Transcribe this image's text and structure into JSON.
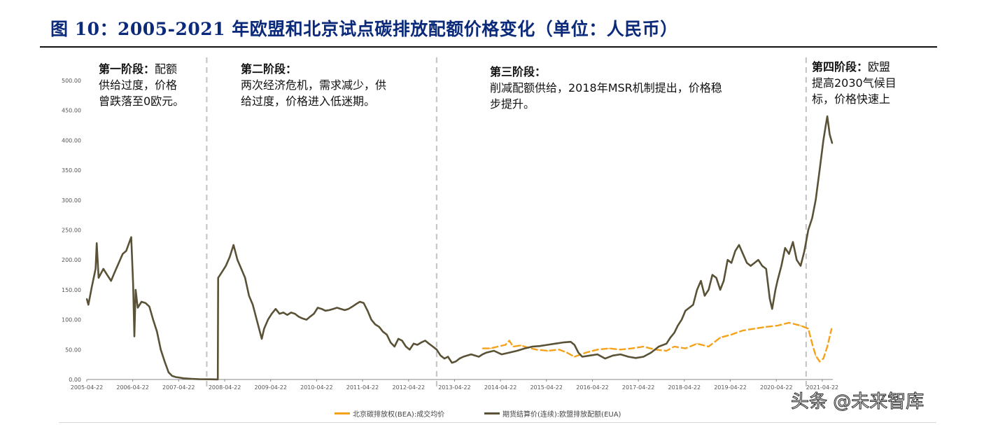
{
  "figure_title": "图 10：2005-2021 年欧盟和北京试点碳排放配额价格变化（单位：人民币）",
  "annotations": [
    {
      "head": "第一阶段：",
      "lines": [
        "配额",
        "供给过度，价格",
        "曾跌落至0欧元。"
      ]
    },
    {
      "head": "第二阶段：",
      "lines": [
        "",
        "两次经济危机，需求减少，供",
        "给过度，价格进入低迷期。"
      ]
    },
    {
      "head": "第三阶段：",
      "lines": [
        "",
        "削减配额供给，2018年MSR机制提出，价格稳",
        "步提升。"
      ]
    },
    {
      "head": "第四阶段：",
      "lines": [
        "欧盟",
        "提高2030气候目",
        "标，价格快速上"
      ]
    }
  ],
  "watermark": "头条 @未来智库",
  "colors": {
    "eua": "#5a5236",
    "bea": "#f5a21b",
    "divider": "#c8c8c8",
    "title": "#0b2a7a"
  },
  "chart_data": {
    "type": "line",
    "ylim": [
      0,
      500
    ],
    "yticks": [
      "0.00",
      "50.00",
      "100.00",
      "150.00",
      "200.00",
      "250.00",
      "300.00",
      "350.00",
      "400.00",
      "450.00",
      "500.00"
    ],
    "xticks": [
      "2005-04-22",
      "2006-04-22",
      "2007-04-22",
      "2008-04-22",
      "2009-04-22",
      "2010-04-22",
      "2011-04-22",
      "2012-04-22",
      "2013-04-22",
      "2014-04-22",
      "2015-04-22",
      "2016-04-22",
      "2017-04-22",
      "2018-04-22",
      "2019-04-22",
      "2020-04-22",
      "2021-04-22"
    ],
    "xlim": [
      "2005-04-22",
      "2021-07-15"
    ],
    "phase_dividers": [
      "2007-12-01",
      "2012-12-01",
      "2020-12-15"
    ],
    "series": [
      {
        "name": "期货结算价(连续):欧盟排放配额(EUA)",
        "points": [
          [
            "2005-04-22",
            135
          ],
          [
            "2005-05-05",
            125
          ],
          [
            "2005-06-01",
            155
          ],
          [
            "2005-07-01",
            185
          ],
          [
            "2005-07-10",
            228
          ],
          [
            "2005-07-25",
            170
          ],
          [
            "2005-09-01",
            185
          ],
          [
            "2005-10-01",
            175
          ],
          [
            "2005-11-01",
            165
          ],
          [
            "2005-12-01",
            180
          ],
          [
            "2006-01-01",
            195
          ],
          [
            "2006-02-01",
            210
          ],
          [
            "2006-03-01",
            215
          ],
          [
            "2006-04-10",
            238
          ],
          [
            "2006-04-25",
            160
          ],
          [
            "2006-05-05",
            72
          ],
          [
            "2006-05-15",
            150
          ],
          [
            "2006-06-01",
            120
          ],
          [
            "2006-07-01",
            130
          ],
          [
            "2006-08-01",
            128
          ],
          [
            "2006-09-01",
            122
          ],
          [
            "2006-10-01",
            100
          ],
          [
            "2006-11-01",
            80
          ],
          [
            "2006-12-01",
            50
          ],
          [
            "2007-01-01",
            30
          ],
          [
            "2007-02-01",
            12
          ],
          [
            "2007-03-01",
            6
          ],
          [
            "2007-04-01",
            4
          ],
          [
            "2007-05-01",
            3
          ],
          [
            "2007-06-01",
            2
          ],
          [
            "2007-08-01",
            1
          ],
          [
            "2007-10-01",
            0.5
          ],
          [
            "2007-12-31",
            0.3
          ],
          [
            "2008-02-01",
            0.2
          ],
          [
            "2008-02-27",
            0.1
          ],
          [
            "2008-03-01",
            170
          ],
          [
            "2008-04-01",
            180
          ],
          [
            "2008-05-01",
            190
          ],
          [
            "2008-06-01",
            205
          ],
          [
            "2008-07-01",
            225
          ],
          [
            "2008-08-01",
            200
          ],
          [
            "2008-09-01",
            185
          ],
          [
            "2008-10-01",
            170
          ],
          [
            "2008-11-01",
            140
          ],
          [
            "2008-12-01",
            125
          ],
          [
            "2009-01-01",
            100
          ],
          [
            "2009-02-10",
            68
          ],
          [
            "2009-03-01",
            85
          ],
          [
            "2009-04-01",
            100
          ],
          [
            "2009-05-01",
            110
          ],
          [
            "2009-06-01",
            118
          ],
          [
            "2009-07-01",
            110
          ],
          [
            "2009-08-01",
            112
          ],
          [
            "2009-09-01",
            108
          ],
          [
            "2009-10-01",
            112
          ],
          [
            "2009-11-01",
            110
          ],
          [
            "2009-12-01",
            105
          ],
          [
            "2010-01-01",
            102
          ],
          [
            "2010-02-01",
            100
          ],
          [
            "2010-03-01",
            105
          ],
          [
            "2010-04-01",
            110
          ],
          [
            "2010-05-01",
            120
          ],
          [
            "2010-06-01",
            118
          ],
          [
            "2010-07-01",
            115
          ],
          [
            "2010-08-01",
            116
          ],
          [
            "2010-09-01",
            118
          ],
          [
            "2010-10-01",
            120
          ],
          [
            "2010-11-01",
            118
          ],
          [
            "2010-12-01",
            116
          ],
          [
            "2011-01-01",
            118
          ],
          [
            "2011-02-01",
            122
          ],
          [
            "2011-03-01",
            126
          ],
          [
            "2011-04-01",
            130
          ],
          [
            "2011-05-01",
            128
          ],
          [
            "2011-06-01",
            115
          ],
          [
            "2011-07-01",
            100
          ],
          [
            "2011-08-01",
            92
          ],
          [
            "2011-09-01",
            88
          ],
          [
            "2011-10-01",
            80
          ],
          [
            "2011-11-01",
            75
          ],
          [
            "2011-12-01",
            62
          ],
          [
            "2012-01-01",
            55
          ],
          [
            "2012-02-01",
            68
          ],
          [
            "2012-03-01",
            65
          ],
          [
            "2012-04-01",
            55
          ],
          [
            "2012-05-01",
            50
          ],
          [
            "2012-06-01",
            60
          ],
          [
            "2012-07-01",
            58
          ],
          [
            "2012-08-01",
            62
          ],
          [
            "2012-09-01",
            65
          ],
          [
            "2012-10-01",
            60
          ],
          [
            "2012-11-01",
            55
          ],
          [
            "2012-12-01",
            50
          ],
          [
            "2013-01-01",
            40
          ],
          [
            "2013-02-01",
            35
          ],
          [
            "2013-03-01",
            38
          ],
          [
            "2013-04-01",
            28
          ],
          [
            "2013-05-01",
            30
          ],
          [
            "2013-06-01",
            35
          ],
          [
            "2013-07-01",
            38
          ],
          [
            "2013-08-01",
            40
          ],
          [
            "2013-09-01",
            42
          ],
          [
            "2013-10-01",
            40
          ],
          [
            "2013-11-01",
            38
          ],
          [
            "2013-12-01",
            42
          ],
          [
            "2014-01-01",
            45
          ],
          [
            "2014-03-01",
            48
          ],
          [
            "2014-05-01",
            42
          ],
          [
            "2014-07-01",
            45
          ],
          [
            "2014-09-01",
            48
          ],
          [
            "2014-11-01",
            52
          ],
          [
            "2015-01-01",
            55
          ],
          [
            "2015-03-01",
            56
          ],
          [
            "2015-05-01",
            58
          ],
          [
            "2015-07-01",
            60
          ],
          [
            "2015-09-01",
            62
          ],
          [
            "2015-11-01",
            63
          ],
          [
            "2015-12-01",
            58
          ],
          [
            "2016-01-01",
            45
          ],
          [
            "2016-02-01",
            38
          ],
          [
            "2016-04-01",
            40
          ],
          [
            "2016-06-01",
            42
          ],
          [
            "2016-08-01",
            35
          ],
          [
            "2016-10-01",
            40
          ],
          [
            "2016-12-01",
            42
          ],
          [
            "2017-02-01",
            38
          ],
          [
            "2017-04-01",
            36
          ],
          [
            "2017-06-01",
            38
          ],
          [
            "2017-08-01",
            45
          ],
          [
            "2017-10-01",
            55
          ],
          [
            "2017-12-01",
            60
          ],
          [
            "2018-01-01",
            70
          ],
          [
            "2018-02-01",
            78
          ],
          [
            "2018-03-01",
            90
          ],
          [
            "2018-04-01",
            100
          ],
          [
            "2018-05-01",
            115
          ],
          [
            "2018-06-01",
            120
          ],
          [
            "2018-07-01",
            125
          ],
          [
            "2018-08-01",
            150
          ],
          [
            "2018-09-01",
            165
          ],
          [
            "2018-10-01",
            140
          ],
          [
            "2018-11-01",
            150
          ],
          [
            "2018-12-01",
            175
          ],
          [
            "2019-01-01",
            170
          ],
          [
            "2019-02-01",
            150
          ],
          [
            "2019-03-01",
            165
          ],
          [
            "2019-04-01",
            200
          ],
          [
            "2019-05-01",
            195
          ],
          [
            "2019-06-01",
            215
          ],
          [
            "2019-07-01",
            225
          ],
          [
            "2019-08-01",
            210
          ],
          [
            "2019-09-01",
            195
          ],
          [
            "2019-10-01",
            190
          ],
          [
            "2019-11-01",
            195
          ],
          [
            "2019-12-01",
            200
          ],
          [
            "2020-01-01",
            190
          ],
          [
            "2020-02-01",
            185
          ],
          [
            "2020-03-01",
            135
          ],
          [
            "2020-03-20",
            118
          ],
          [
            "2020-04-15",
            150
          ],
          [
            "2020-05-01",
            165
          ],
          [
            "2020-06-01",
            190
          ],
          [
            "2020-07-01",
            220
          ],
          [
            "2020-08-01",
            210
          ],
          [
            "2020-09-01",
            230
          ],
          [
            "2020-10-01",
            200
          ],
          [
            "2020-11-01",
            190
          ],
          [
            "2020-12-01",
            215
          ],
          [
            "2021-01-01",
            250
          ],
          [
            "2021-02-01",
            270
          ],
          [
            "2021-03-01",
            300
          ],
          [
            "2021-04-01",
            350
          ],
          [
            "2021-05-01",
            400
          ],
          [
            "2021-05-20",
            425
          ],
          [
            "2021-06-01",
            440
          ],
          [
            "2021-06-20",
            410
          ],
          [
            "2021-07-10",
            395
          ]
        ]
      },
      {
        "name": "北京碳排放权(BEA):成交均价",
        "points": [
          [
            "2013-12-01",
            52
          ],
          [
            "2014-02-01",
            52
          ],
          [
            "2014-04-01",
            55
          ],
          [
            "2014-06-01",
            58
          ],
          [
            "2014-07-01",
            65
          ],
          [
            "2014-08-01",
            55
          ],
          [
            "2014-10-01",
            57
          ],
          [
            "2014-12-01",
            53
          ],
          [
            "2015-02-01",
            50
          ],
          [
            "2015-05-01",
            48
          ],
          [
            "2015-08-01",
            50
          ],
          [
            "2015-10-01",
            45
          ],
          [
            "2015-12-01",
            38
          ],
          [
            "2016-03-01",
            45
          ],
          [
            "2016-06-01",
            50
          ],
          [
            "2016-09-01",
            52
          ],
          [
            "2016-12-01",
            50
          ],
          [
            "2017-03-01",
            52
          ],
          [
            "2017-06-01",
            55
          ],
          [
            "2017-09-01",
            50
          ],
          [
            "2017-12-01",
            48
          ],
          [
            "2018-02-01",
            55
          ],
          [
            "2018-05-01",
            52
          ],
          [
            "2018-08-01",
            60
          ],
          [
            "2018-11-01",
            55
          ],
          [
            "2019-02-01",
            70
          ],
          [
            "2019-05-01",
            75
          ],
          [
            "2019-08-01",
            82
          ],
          [
            "2019-11-01",
            85
          ],
          [
            "2020-02-01",
            88
          ],
          [
            "2020-05-01",
            90
          ],
          [
            "2020-08-01",
            95
          ],
          [
            "2020-11-01",
            90
          ],
          [
            "2021-01-01",
            85
          ],
          [
            "2021-02-01",
            60
          ],
          [
            "2021-03-01",
            40
          ],
          [
            "2021-04-01",
            30
          ],
          [
            "2021-05-01",
            35
          ],
          [
            "2021-06-01",
            55
          ],
          [
            "2021-07-05",
            85
          ]
        ]
      }
    ]
  }
}
